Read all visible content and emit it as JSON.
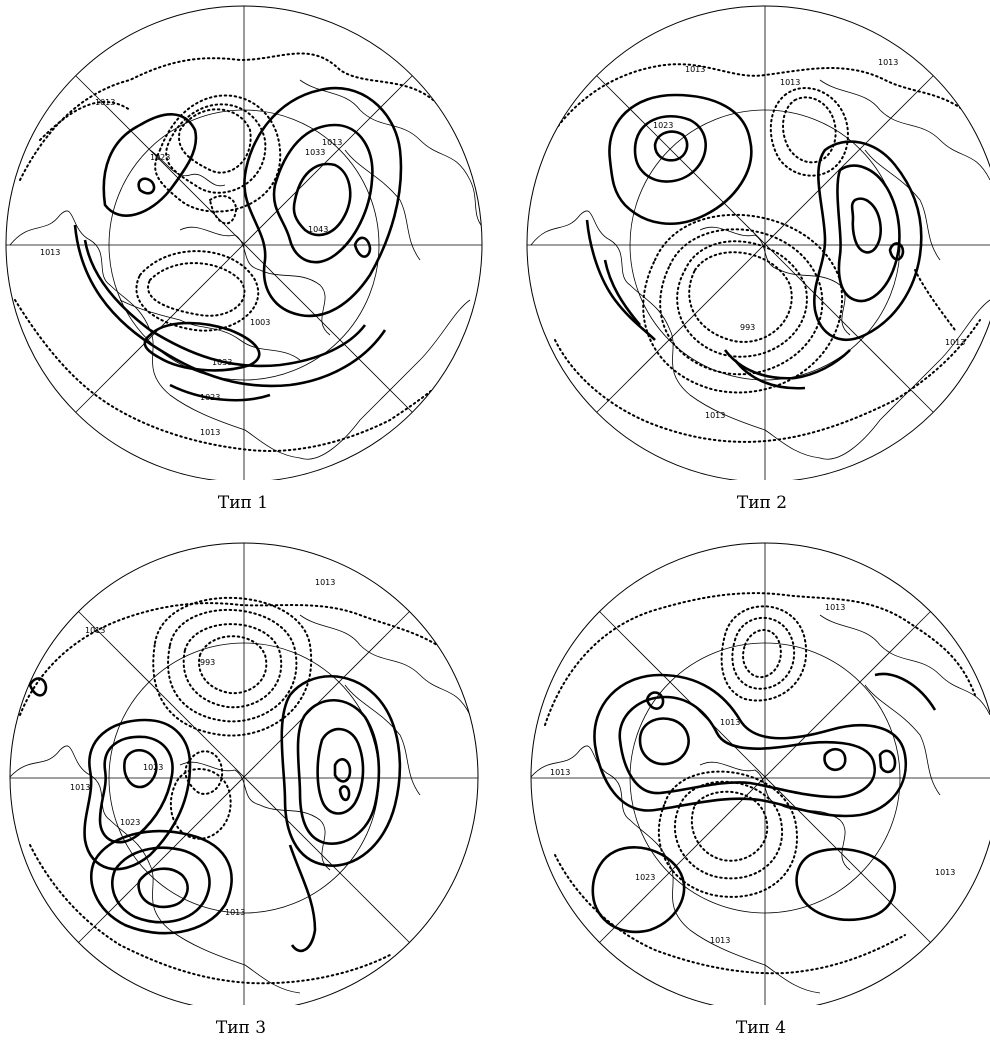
{
  "panels": [
    {
      "caption": "Тип 1",
      "isobar_labels": [
        "1013",
        "1023",
        "1033",
        "1043",
        "1013",
        "1013",
        "1023",
        "1033",
        "1003",
        "1013"
      ]
    },
    {
      "caption": "Тип 2",
      "isobar_labels": [
        "1013",
        "1023",
        "1013",
        "1013",
        "993",
        "1013",
        "1013"
      ]
    },
    {
      "caption": "Тип 3",
      "isobar_labels": [
        "1013",
        "1023",
        "1023",
        "993",
        "1013",
        "1013",
        "1013"
      ]
    },
    {
      "caption": "Тип 4",
      "isobar_labels": [
        "1013",
        "1013",
        "1023",
        "1013",
        "1013",
        "1013"
      ]
    }
  ]
}
